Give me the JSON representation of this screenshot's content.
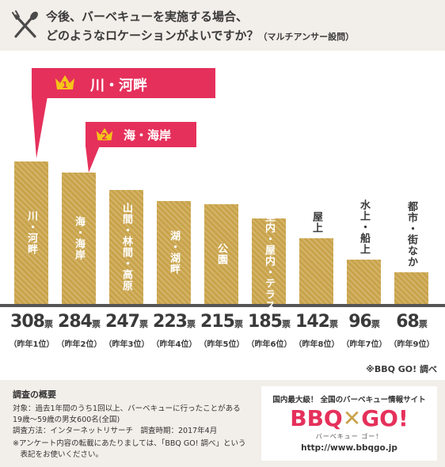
{
  "header": {
    "line1": "今後、バーベキューを実施する場合、",
    "line2": "どのようなロケーションがよいですか？",
    "line2_note": "（マルチアンサー設問）",
    "icon": "fork-knife-icon"
  },
  "callouts": [
    {
      "rank": "1",
      "label": "川・河畔"
    },
    {
      "rank": "2",
      "label": "海・海岸"
    }
  ],
  "unit": "票",
  "chart_data": {
    "type": "bar",
    "categories": [
      "川・河畔",
      "海・海岸",
      "山間・林間・高原",
      "湖・湖畔",
      "公園",
      "室内・屋内・テラス",
      "屋上",
      "水上・船上",
      "都市・街なか"
    ],
    "values": [
      308,
      284,
      247,
      223,
      215,
      185,
      142,
      96,
      68
    ],
    "value_labels": [
      "308",
      "284",
      "247",
      "223",
      "215",
      "185",
      "142",
      "96",
      "68"
    ],
    "prev_year": [
      "（昨年1位）",
      "（昨年2位）",
      "（昨年3位）",
      "（昨年4位）",
      "（昨年5位）",
      "（昨年6位）",
      "（昨年8位）",
      "（昨年7位）",
      "（昨年9位）"
    ],
    "ylim": [
      0,
      330
    ],
    "colors": {
      "bar": "#c9a34a",
      "accent": "#e5305b"
    }
  },
  "source": "※BBQ GO! 調べ",
  "footer": {
    "title": "調査の概要",
    "lines": [
      "対象：過去1年間のうち1回以上、バーベキューに行ったことがある",
      "19歳～59歳の男女600名(全国)",
      "調査方法：インターネットリサーチ　調査時期：2017年4月",
      "※アンケート内容の転載にあたりましては、「BBQ GO! 調べ」という",
      "　表記をお使いください。"
    ]
  },
  "logo": {
    "tagline": "国内最大級！ 全国のバーベキュー情報サイト",
    "part1": "BBQ",
    "mark": "✕",
    "part2": "GO!",
    "kana": "バーベキュー ゴー！",
    "url": "http://www.bbqgo.jp"
  }
}
